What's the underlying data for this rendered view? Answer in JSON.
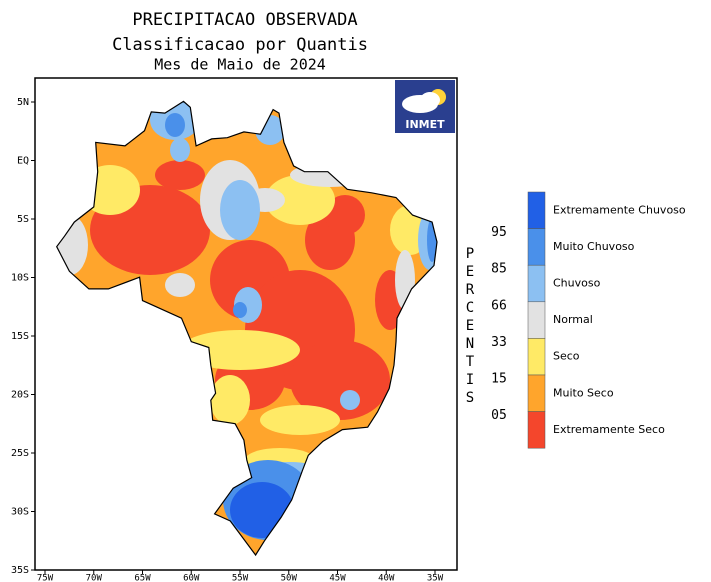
{
  "title": "PRECIPITACAO OBSERVADA",
  "subtitle": "Classificacao por Quantis",
  "period": "Mes de Maio de 2024",
  "logo": "INMET",
  "map": {
    "lat_labels": [
      "5N",
      "EQ",
      "5S",
      "10S",
      "15S",
      "20S",
      "25S",
      "30S",
      "35S"
    ],
    "lon_labels": [
      "75W",
      "70W",
      "65W",
      "60W",
      "55W",
      "50W",
      "45W",
      "40W",
      "35W"
    ]
  },
  "legend": {
    "axis_title": "PERCENTIS",
    "classes": [
      {
        "label": "Extremamente Chuvoso",
        "color": "#2160e6"
      },
      {
        "label": "Muito Chuvoso",
        "color": "#4a90ea"
      },
      {
        "label": "Chuvoso",
        "color": "#8cc0f2"
      },
      {
        "label": "Normal",
        "color": "#e2e2e2"
      },
      {
        "label": "Seco",
        "color": "#ffea66"
      },
      {
        "label": "Muito Seco",
        "color": "#ffa52c"
      },
      {
        "label": "Extremamente Seco",
        "color": "#f4462c"
      }
    ],
    "percentiles": [
      "95",
      "85",
      "66",
      "33",
      "15",
      "05"
    ]
  }
}
